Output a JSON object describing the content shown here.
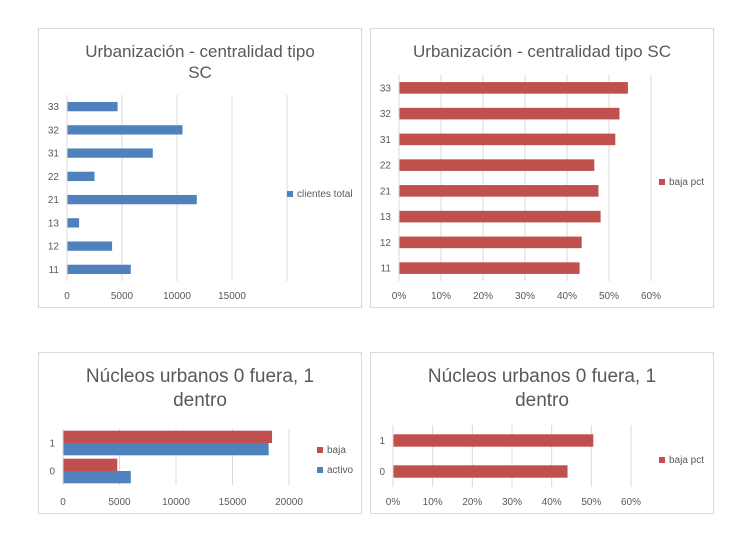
{
  "chart_data": [
    {
      "type": "bar",
      "orientation": "horizontal",
      "title": "Urbanización - centralidad tipo SC",
      "categories": [
        "11",
        "12",
        "13",
        "21",
        "22",
        "31",
        "32",
        "33"
      ],
      "series": [
        {
          "name": "clientes total",
          "color": "#4f81bd",
          "values": [
            5800,
            4100,
            1100,
            11800,
            2500,
            7800,
            10500,
            4600
          ]
        }
      ],
      "xticks": [
        "0",
        "5000",
        "10000",
        "15000"
      ],
      "xlim": [
        0,
        20000
      ],
      "grid": true,
      "legend_position": "right"
    },
    {
      "type": "bar",
      "orientation": "horizontal",
      "title": "Urbanización - centralidad tipo SC",
      "categories": [
        "11",
        "12",
        "13",
        "21",
        "22",
        "31",
        "32",
        "33"
      ],
      "series": [
        {
          "name": "baja pct",
          "color": "#c0504d",
          "values": [
            0.43,
            0.435,
            0.48,
            0.475,
            0.465,
            0.515,
            0.525,
            0.545
          ]
        }
      ],
      "xticks": [
        "0%",
        "10%",
        "20%",
        "30%",
        "40%",
        "50%",
        "60%"
      ],
      "xlim": [
        0,
        0.6
      ],
      "grid": true,
      "legend_position": "right"
    },
    {
      "type": "bar",
      "orientation": "horizontal",
      "title": "Núcleos urbanos 0 fuera, 1 dentro",
      "categories": [
        "0",
        "1"
      ],
      "series": [
        {
          "name": "baja",
          "color": "#c0504d",
          "values": [
            4800,
            18500
          ]
        },
        {
          "name": "activo",
          "color": "#4f81bd",
          "values": [
            6000,
            18200
          ]
        }
      ],
      "xticks": [
        "0",
        "5000",
        "10000",
        "15000",
        "20000"
      ],
      "xlim": [
        0,
        20000
      ],
      "grid": true,
      "legend_position": "right"
    },
    {
      "type": "bar",
      "orientation": "horizontal",
      "title": "Núcleos urbanos 0 fuera, 1 dentro",
      "categories": [
        "0",
        "1"
      ],
      "series": [
        {
          "name": "baja pct",
          "color": "#c0504d",
          "values": [
            0.44,
            0.505
          ]
        }
      ],
      "xticks": [
        "0%",
        "10%",
        "20%",
        "30%",
        "40%",
        "50%",
        "60%"
      ],
      "xlim": [
        0,
        0.6
      ],
      "grid": true,
      "legend_position": "right"
    }
  ]
}
